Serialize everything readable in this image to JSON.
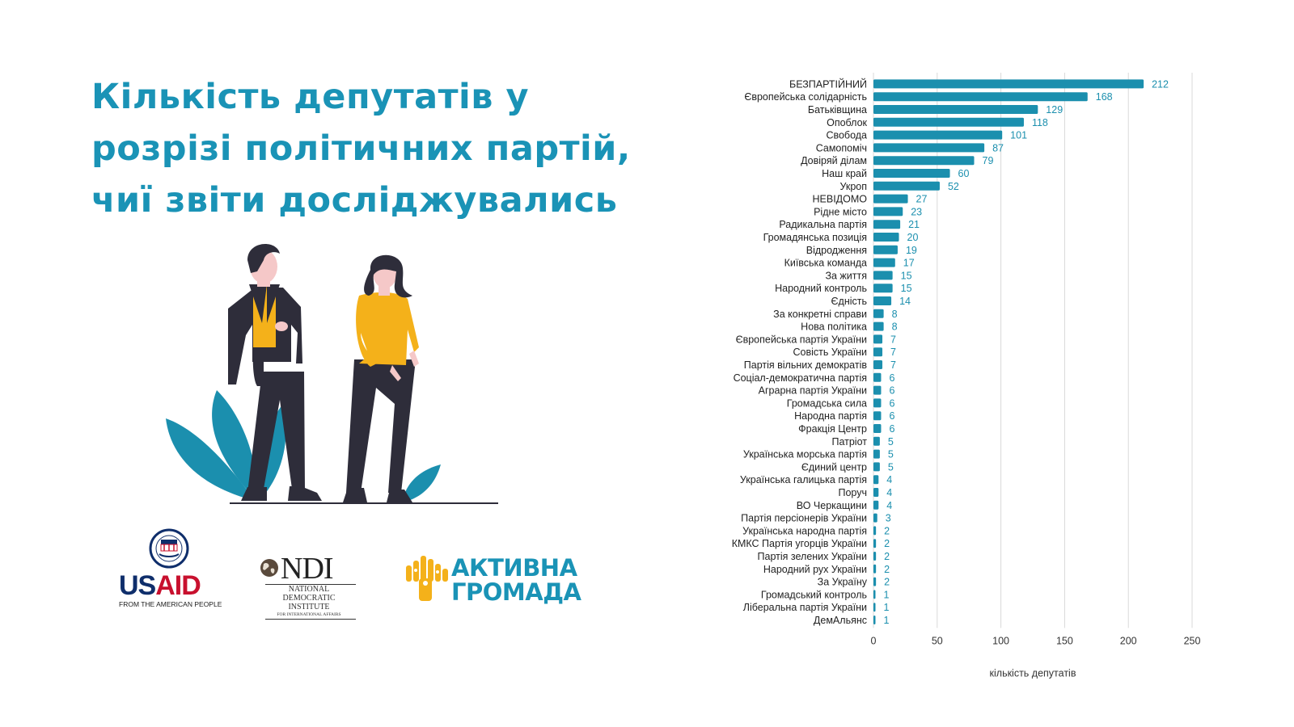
{
  "title_lines": [
    "Кількість депутатів у",
    "розрізі політичних партій,",
    "чиї звіти досліджувались"
  ],
  "logos": {
    "usaid": {
      "name": "USAID",
      "tagline": "FROM THE AMERICAN PEOPLE"
    },
    "ndi": {
      "name": "NDI",
      "line1": "NATIONAL",
      "line2": "DEMOCRATIC",
      "line3": "INSTITUTE",
      "line4": "FOR INTERNATIONAL AFFAIRS"
    },
    "aktyvna": {
      "line1": "АКТИВНА",
      "line2": "ГРОМАДА"
    }
  },
  "colors": {
    "accent": "#1a93b6",
    "bar": "#1b8fae",
    "usaid_blue": "#0f2e6b",
    "usaid_red": "#c8102e",
    "orange": "#f4b11a"
  },
  "chart_data": {
    "type": "bar",
    "orientation": "horizontal",
    "categories": [
      "БЕЗПАРТІЙНИЙ",
      "Європейська солідарність",
      "Батьківщина",
      "Опоблок",
      "Свобода",
      "Самопоміч",
      "Довіряй ділам",
      "Наш край",
      "Укроп",
      "НЕВІДОМО",
      "Рідне місто",
      "Радикальна партія",
      "Громадянська позиція",
      "Відродження",
      "Київська команда",
      "За життя",
      "Народний контроль",
      "Єдність",
      "За конкретні справи",
      "Нова політика",
      "Європейська партія України",
      "Совість України",
      "Партія вільних демократів",
      "Соціал-демократична партія",
      "Аграрна партія України",
      "Громадська сила",
      "Народна партія",
      "Фракція Центр",
      "Патріот",
      "Українська морська партія",
      "Єдиний центр",
      "Українська галицька партія",
      "Поруч",
      "ВО Черкащини",
      "Партія персіонерів України",
      "Українська народна партія",
      "КМКС Партія угорців України",
      "Партія зелених України",
      "Народний рух України",
      "За Україну",
      "Громадський контроль",
      "Ліберальна партія України",
      "ДемАльянс"
    ],
    "values": [
      212,
      168,
      129,
      118,
      101,
      87,
      79,
      60,
      52,
      27,
      23,
      21,
      20,
      19,
      17,
      15,
      15,
      14,
      8,
      8,
      7,
      7,
      7,
      6,
      6,
      6,
      6,
      6,
      5,
      5,
      5,
      4,
      4,
      4,
      3,
      2,
      2,
      2,
      2,
      2,
      1,
      1,
      1
    ],
    "xlabel": "кількість депутатів",
    "xlim": [
      0,
      250
    ],
    "xticks": [
      0,
      50,
      100,
      150,
      200,
      250
    ],
    "grid": "vertical",
    "data_labels": true
  }
}
